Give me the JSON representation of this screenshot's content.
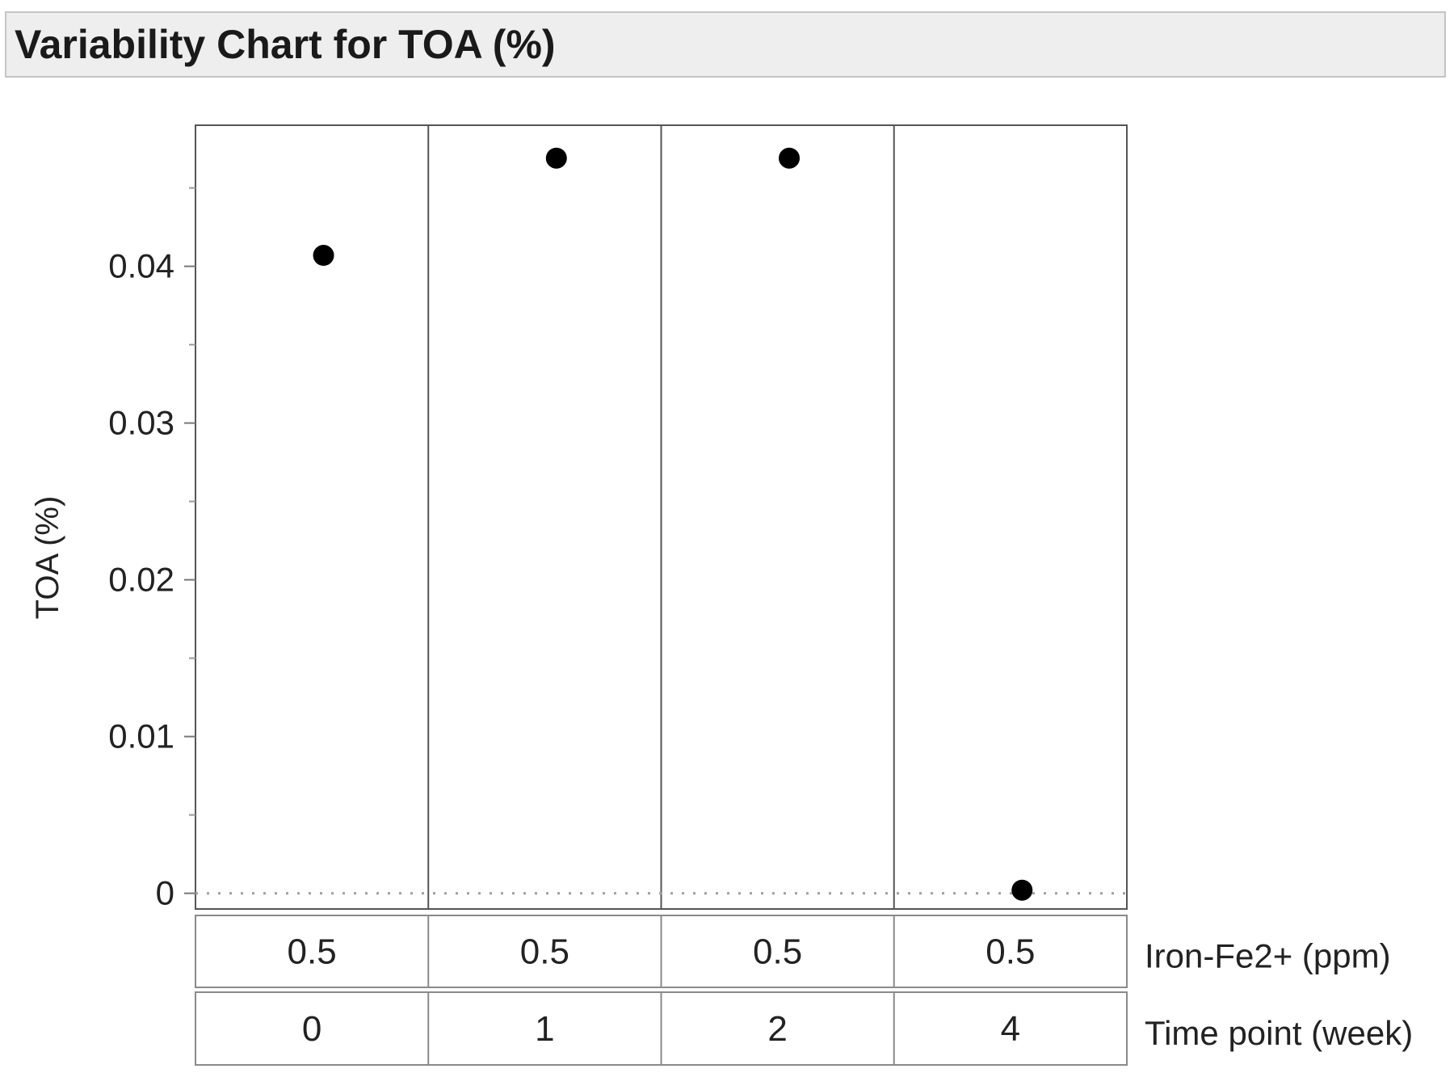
{
  "title": "Variability Chart for TOA (%)",
  "chart_data": {
    "type": "scatter",
    "title": "Variability Chart for TOA (%)",
    "ylabel": "TOA (%)",
    "ylim": [
      -0.001,
      0.049
    ],
    "yticks": [
      0,
      0.01,
      0.02,
      0.03,
      0.04
    ],
    "ytick_labels": [
      "0",
      "0.01",
      "0.02",
      "0.03",
      "0.04"
    ],
    "grid": false,
    "reference_line": 0,
    "groups": [
      {
        "iron": "0.5",
        "time": "0",
        "value": 0.0407
      },
      {
        "iron": "0.5",
        "time": "1",
        "value": 0.0469
      },
      {
        "iron": "0.5",
        "time": "2",
        "value": 0.0469
      },
      {
        "iron": "0.5",
        "time": "4",
        "value": 0.0002
      }
    ],
    "factor_labels": [
      "Iron-Fe2+ (ppm)",
      "Time point (week)"
    ],
    "colors": {
      "point": "#000000",
      "frame": "#555555",
      "refline": "#a0a0a0"
    }
  }
}
